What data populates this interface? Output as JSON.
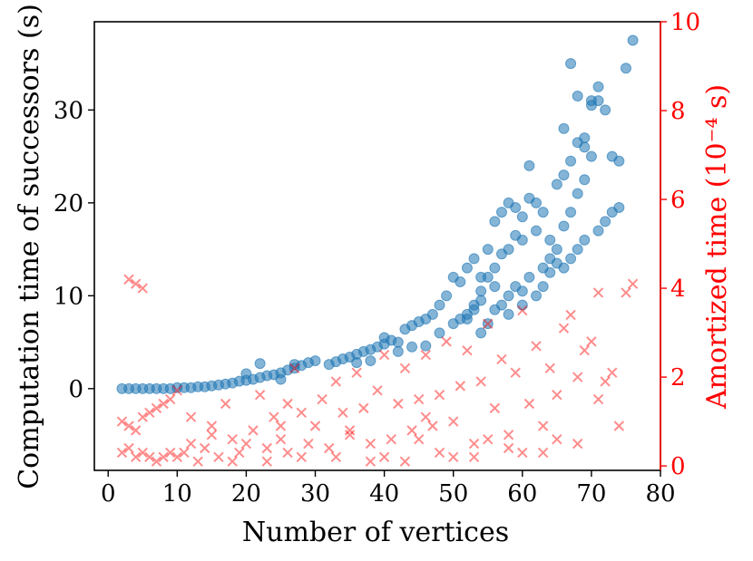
{
  "chart_data": {
    "type": "scatter",
    "xlabel": "Number of vertices",
    "ylabel": "Computation time of successors (s)",
    "y2label": "Amortized time (10⁻⁴ s)",
    "xlim": [
      -2,
      80
    ],
    "ylim": [
      -8.8,
      39.5
    ],
    "y2lim": [
      -0.1,
      10
    ],
    "xticks": [
      0,
      10,
      20,
      30,
      40,
      50,
      60,
      70,
      80
    ],
    "yticks": [
      0,
      10,
      20,
      30
    ],
    "y2ticks": [
      0,
      2,
      4,
      6,
      8,
      10
    ],
    "colors": {
      "series1": "#1f77b4",
      "series2": "#ff0000",
      "axis2": "#ff0000"
    },
    "series": [
      {
        "axis": "left",
        "marker": "circle",
        "points": [
          [
            2,
            0
          ],
          [
            3,
            0
          ],
          [
            4,
            0
          ],
          [
            5,
            0
          ],
          [
            6,
            0
          ],
          [
            7,
            0
          ],
          [
            8,
            0
          ],
          [
            9,
            0
          ],
          [
            10,
            0.1
          ],
          [
            11,
            0.1
          ],
          [
            12,
            0.1
          ],
          [
            13,
            0.2
          ],
          [
            14,
            0.2
          ],
          [
            15,
            0.3
          ],
          [
            16,
            0.4
          ],
          [
            17,
            0.5
          ],
          [
            18,
            0.6
          ],
          [
            19,
            0.8
          ],
          [
            20,
            0.9
          ],
          [
            21,
            1.0
          ],
          [
            22,
            1.2
          ],
          [
            23,
            1.4
          ],
          [
            24,
            1.5
          ],
          [
            25,
            1.7
          ],
          [
            26,
            2.0
          ],
          [
            27,
            2.2
          ],
          [
            28,
            2.5
          ],
          [
            29,
            2.8
          ],
          [
            30,
            3.0
          ],
          [
            22,
            2.7
          ],
          [
            27,
            2.6
          ],
          [
            20,
            1.6
          ],
          [
            25,
            1.0
          ],
          [
            32,
            2.6
          ],
          [
            33,
            2.9
          ],
          [
            34,
            3.2
          ],
          [
            35,
            3.4
          ],
          [
            36,
            3.7
          ],
          [
            37,
            4.0
          ],
          [
            38,
            4.2
          ],
          [
            39,
            4.5
          ],
          [
            40,
            4.8
          ],
          [
            36,
            2.8
          ],
          [
            38,
            3.0
          ],
          [
            40,
            5.5
          ],
          [
            41,
            5.2
          ],
          [
            42,
            5.0
          ],
          [
            43,
            6.4
          ],
          [
            44,
            6.8
          ],
          [
            45,
            7.2
          ],
          [
            46,
            7.5
          ],
          [
            47,
            8.0
          ],
          [
            48,
            9.0
          ],
          [
            49,
            10.0
          ],
          [
            50,
            12.0
          ],
          [
            42,
            4.0
          ],
          [
            44,
            4.5
          ],
          [
            46,
            4.6
          ],
          [
            48,
            6.0
          ],
          [
            50,
            7.0
          ],
          [
            51,
            7.5
          ],
          [
            52,
            8.0
          ],
          [
            53,
            9.0
          ],
          [
            54,
            10.5
          ],
          [
            55,
            12.0
          ],
          [
            56,
            13.0
          ],
          [
            57,
            14.5
          ],
          [
            58,
            15.0
          ],
          [
            59,
            16.5
          ],
          [
            51,
            11.5
          ],
          [
            52,
            13.0
          ],
          [
            53,
            14.0
          ],
          [
            54,
            12.0
          ],
          [
            55,
            15.0
          ],
          [
            56,
            18.0
          ],
          [
            57,
            19.0
          ],
          [
            58,
            20.0
          ],
          [
            59,
            19.5
          ],
          [
            60,
            18.5
          ],
          [
            52,
            7.5
          ],
          [
            53,
            8.5
          ],
          [
            54,
            6.0
          ],
          [
            55,
            7.0
          ],
          [
            56,
            8.5
          ],
          [
            57,
            9.0
          ],
          [
            58,
            10.0
          ],
          [
            59,
            11.0
          ],
          [
            60,
            10.5
          ],
          [
            61,
            12.0
          ],
          [
            60,
            16.0
          ],
          [
            61,
            20.5
          ],
          [
            62,
            20.0
          ],
          [
            63,
            19.0
          ],
          [
            64,
            16.0
          ],
          [
            65,
            22.0
          ],
          [
            66,
            23.0
          ],
          [
            67,
            24.5
          ],
          [
            68,
            26.5
          ],
          [
            69,
            26.0
          ],
          [
            61,
            24.0
          ],
          [
            62,
            17.0
          ],
          [
            63,
            13.0
          ],
          [
            64,
            14.0
          ],
          [
            65,
            15.0
          ],
          [
            66,
            17.5
          ],
          [
            67,
            19.0
          ],
          [
            68,
            21.0
          ],
          [
            69,
            22.5
          ],
          [
            70,
            25.0
          ],
          [
            66,
            28.0
          ],
          [
            67,
            35.0
          ],
          [
            68,
            31.5
          ],
          [
            69,
            27.0
          ],
          [
            70,
            30.5
          ],
          [
            71,
            32.5
          ],
          [
            72,
            30.0
          ],
          [
            73,
            25.0
          ],
          [
            74,
            24.5
          ],
          [
            75,
            34.5
          ],
          [
            76,
            37.5
          ],
          [
            70,
            31.0
          ],
          [
            71,
            31.0
          ],
          [
            72,
            18.0
          ],
          [
            73,
            19.0
          ],
          [
            74,
            19.5
          ],
          [
            71,
            17.0
          ],
          [
            69,
            16.0
          ],
          [
            68,
            15.0
          ],
          [
            67,
            14.0
          ],
          [
            66,
            13.0
          ],
          [
            62,
            10.0
          ],
          [
            63,
            11.0
          ],
          [
            64,
            12.5
          ],
          [
            65,
            13.5
          ],
          [
            60,
            9.0
          ],
          [
            58,
            8.0
          ],
          [
            56,
            11.0
          ],
          [
            54,
            9.5
          ]
        ]
      },
      {
        "axis": "right",
        "marker": "x",
        "points": [
          [
            3,
            4.2
          ],
          [
            4,
            4.1
          ],
          [
            5,
            4.0
          ],
          [
            2,
            1.0
          ],
          [
            3,
            0.9
          ],
          [
            4,
            0.8
          ],
          [
            5,
            1.1
          ],
          [
            6,
            1.2
          ],
          [
            7,
            1.3
          ],
          [
            8,
            1.4
          ],
          [
            9,
            1.5
          ],
          [
            10,
            1.7
          ],
          [
            2,
            0.3
          ],
          [
            3,
            0.4
          ],
          [
            4,
            0.2
          ],
          [
            5,
            0.3
          ],
          [
            6,
            0.2
          ],
          [
            7,
            0.1
          ],
          [
            8,
            0.2
          ],
          [
            9,
            0.3
          ],
          [
            10,
            0.2
          ],
          [
            11,
            0.3
          ],
          [
            12,
            0.5
          ],
          [
            13,
            0.1
          ],
          [
            14,
            0.4
          ],
          [
            15,
            0.7
          ],
          [
            16,
            0.2
          ],
          [
            17,
            1.4
          ],
          [
            18,
            0.6
          ],
          [
            19,
            0.3
          ],
          [
            20,
            0.5
          ],
          [
            21,
            0.8
          ],
          [
            22,
            1.6
          ],
          [
            23,
            0.4
          ],
          [
            24,
            1.1
          ],
          [
            25,
            0.6
          ],
          [
            26,
            0.3
          ],
          [
            27,
            2.2
          ],
          [
            28,
            1.2
          ],
          [
            29,
            0.5
          ],
          [
            30,
            0.9
          ],
          [
            31,
            1.5
          ],
          [
            32,
            0.4
          ],
          [
            33,
            1.9
          ],
          [
            34,
            1.2
          ],
          [
            35,
            0.7
          ],
          [
            36,
            2.1
          ],
          [
            37,
            1.3
          ],
          [
            38,
            0.5
          ],
          [
            39,
            1.7
          ],
          [
            40,
            2.5
          ],
          [
            41,
            0.6
          ],
          [
            42,
            1.4
          ],
          [
            43,
            2.2
          ],
          [
            44,
            0.8
          ],
          [
            45,
            1.5
          ],
          [
            46,
            2.5
          ],
          [
            47,
            0.9
          ],
          [
            48,
            1.6
          ],
          [
            49,
            2.8
          ],
          [
            50,
            1.0
          ],
          [
            51,
            1.8
          ],
          [
            52,
            2.6
          ],
          [
            53,
            0.5
          ],
          [
            54,
            1.9
          ],
          [
            55,
            3.2
          ],
          [
            56,
            1.3
          ],
          [
            57,
            2.4
          ],
          [
            58,
            0.7
          ],
          [
            59,
            2.1
          ],
          [
            60,
            3.5
          ],
          [
            61,
            1.4
          ],
          [
            62,
            2.7
          ],
          [
            63,
            0.9
          ],
          [
            64,
            2.2
          ],
          [
            65,
            1.6
          ],
          [
            66,
            3.1
          ],
          [
            67,
            3.4
          ],
          [
            68,
            2.0
          ],
          [
            69,
            2.6
          ],
          [
            70,
            2.8
          ],
          [
            71,
            1.5
          ],
          [
            72,
            1.9
          ],
          [
            73,
            2.1
          ],
          [
            74,
            0.9
          ],
          [
            75,
            3.9
          ],
          [
            76,
            4.1
          ],
          [
            71,
            3.9
          ],
          [
            60,
            0.3
          ],
          [
            50,
            0.2
          ],
          [
            40,
            0.2
          ],
          [
            15,
            0.9
          ],
          [
            25,
            0.9
          ],
          [
            35,
            0.8
          ],
          [
            45,
            0.6
          ],
          [
            55,
            0.6
          ],
          [
            65,
            0.6
          ],
          [
            12,
            1.1
          ],
          [
            18,
            0.1
          ],
          [
            28,
            0.2
          ],
          [
            38,
            0.1
          ],
          [
            48,
            0.3
          ],
          [
            58,
            0.4
          ],
          [
            68,
            0.5
          ],
          [
            33,
            0.2
          ],
          [
            43,
            0.1
          ],
          [
            53,
            0.2
          ],
          [
            63,
            0.3
          ],
          [
            23,
            0.1
          ],
          [
            26,
            1.4
          ],
          [
            46,
            1.1
          ]
        ]
      }
    ]
  }
}
